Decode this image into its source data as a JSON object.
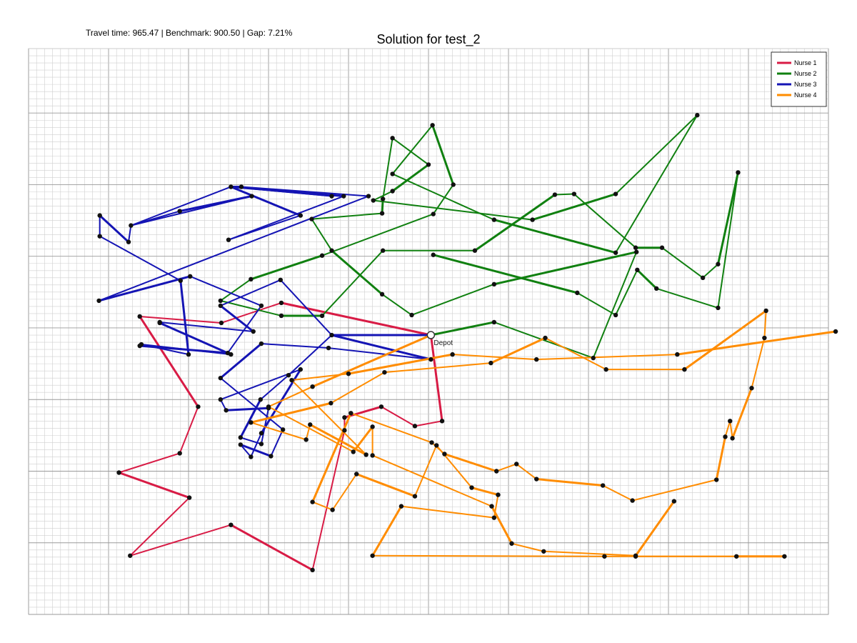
{
  "header": {
    "stats": "Travel time: 965.47 | Benchmark: 900.50 | Gap: 7.21%",
    "title": "Solution for test_2"
  },
  "chart_data": {
    "type": "line",
    "title": "Solution for test_2",
    "subtitle": "Travel time: 965.47 | Benchmark: 900.50 | Gap: 7.21%",
    "xlabel": "",
    "ylabel": "",
    "xlim": [
      0,
      1000
    ],
    "ylim": [
      0,
      790
    ],
    "grid": true,
    "legend_position": "top-right",
    "depot": {
      "label": "Depot",
      "x": 503,
      "y": 390
    },
    "series": [
      {
        "name": "Nurse 1",
        "color": "#d81b45",
        "path": [
          [
            503,
            390
          ],
          [
            316,
            435
          ],
          [
            241,
            407
          ],
          [
            139,
            416
          ],
          [
            212,
            290
          ],
          [
            189,
            225
          ],
          [
            113,
            198
          ],
          [
            201,
            163
          ],
          [
            127,
            82
          ],
          [
            253,
            125
          ],
          [
            355,
            62
          ],
          [
            395,
            257
          ],
          [
            395,
            275
          ],
          [
            441,
            290
          ],
          [
            483,
            263
          ],
          [
            517,
            270
          ],
          [
            503,
            390
          ]
        ]
      },
      {
        "name": "Nurse 2",
        "color": "#108010",
        "path": [
          [
            503,
            390
          ],
          [
            582,
            408
          ],
          [
            706,
            358
          ],
          [
            760,
            506
          ],
          [
            582,
            461
          ],
          [
            479,
            418
          ],
          [
            442,
            447
          ],
          [
            379,
            508
          ],
          [
            354,
            552
          ],
          [
            442,
            560
          ],
          [
            443,
            580
          ],
          [
            455,
            665
          ],
          [
            500,
            628
          ],
          [
            455,
            591
          ],
          [
            431,
            578
          ],
          [
            630,
            551
          ],
          [
            734,
            587
          ],
          [
            836,
            697
          ],
          [
            734,
            505
          ],
          [
            582,
            551
          ],
          [
            455,
            615
          ],
          [
            505,
            683
          ],
          [
            531,
            600
          ],
          [
            506,
            559
          ],
          [
            367,
            501
          ],
          [
            278,
            468
          ],
          [
            240,
            438
          ],
          [
            316,
            417
          ],
          [
            367,
            417
          ],
          [
            443,
            508
          ],
          [
            558,
            508
          ],
          [
            658,
            586
          ],
          [
            682,
            587
          ],
          [
            759,
            512
          ],
          [
            792,
            512
          ],
          [
            843,
            470
          ],
          [
            862,
            489
          ],
          [
            887,
            617
          ],
          [
            862,
            428
          ],
          [
            785,
            455
          ],
          [
            761,
            481
          ],
          [
            734,
            418
          ],
          [
            686,
            449
          ],
          [
            506,
            502
          ]
        ]
      },
      {
        "name": "Nurse 3",
        "color": "#1414b4",
        "path": [
          [
            503,
            390
          ],
          [
            379,
            390
          ],
          [
            325,
            334
          ],
          [
            290,
            300
          ],
          [
            265,
            247
          ],
          [
            291,
            238
          ],
          [
            300,
            288
          ],
          [
            247,
            285
          ],
          [
            240,
            300
          ],
          [
            340,
            342
          ],
          [
            291,
            253
          ],
          [
            278,
            220
          ],
          [
            265,
            237
          ],
          [
            303,
            221
          ],
          [
            318,
            258
          ],
          [
            240,
            330
          ],
          [
            291,
            378
          ],
          [
            375,
            372
          ],
          [
            503,
            356
          ],
          [
            379,
            390
          ],
          [
            315,
            467
          ],
          [
            240,
            431
          ],
          [
            281,
            395
          ],
          [
            164,
            408
          ],
          [
            164,
            407
          ],
          [
            253,
            363
          ],
          [
            141,
            377
          ],
          [
            200,
            363
          ],
          [
            190,
            466
          ],
          [
            89,
            528
          ],
          [
            89,
            557
          ],
          [
            125,
            520
          ],
          [
            128,
            543
          ],
          [
            189,
            563
          ],
          [
            279,
            584
          ],
          [
            128,
            543
          ],
          [
            253,
            597
          ],
          [
            394,
            584
          ],
          [
            250,
            523
          ],
          [
            340,
            557
          ],
          [
            253,
            597
          ],
          [
            379,
            584
          ],
          [
            253,
            597
          ],
          [
            266,
            597
          ],
          [
            425,
            584
          ],
          [
            88,
            438
          ],
          [
            202,
            472
          ],
          [
            291,
            431
          ],
          [
            249,
            365
          ],
          [
            139,
            375
          ]
        ]
      },
      {
        "name": "Nurse 4",
        "color": "#ff8c00",
        "path": [
          [
            503,
            390
          ],
          [
            355,
            318
          ],
          [
            300,
            290
          ],
          [
            406,
            227
          ],
          [
            430,
            262
          ],
          [
            430,
            222
          ],
          [
            579,
            151
          ],
          [
            604,
            99
          ],
          [
            644,
            88
          ],
          [
            759,
            82
          ],
          [
            807,
            158
          ],
          [
            759,
            81
          ],
          [
            885,
            81
          ],
          [
            945,
            81
          ],
          [
            720,
            81
          ],
          [
            430,
            82
          ],
          [
            466,
            151
          ],
          [
            582,
            135
          ],
          [
            587,
            167
          ],
          [
            554,
            177
          ],
          [
            510,
            236
          ],
          [
            483,
            165
          ],
          [
            410,
            196
          ],
          [
            380,
            146
          ],
          [
            355,
            157
          ],
          [
            403,
            281
          ],
          [
            504,
            240
          ],
          [
            520,
            224
          ],
          [
            585,
            200
          ],
          [
            610,
            210
          ],
          [
            635,
            189
          ],
          [
            718,
            180
          ],
          [
            755,
            159
          ],
          [
            860,
            188
          ],
          [
            871,
            248
          ],
          [
            877,
            270
          ],
          [
            880,
            246
          ],
          [
            904,
            316
          ],
          [
            920,
            386
          ],
          [
            922,
            424
          ],
          [
            820,
            342
          ],
          [
            722,
            342
          ],
          [
            646,
            386
          ],
          [
            578,
            351
          ],
          [
            445,
            338
          ],
          [
            378,
            295
          ],
          [
            278,
            268
          ],
          [
            347,
            244
          ],
          [
            352,
            265
          ],
          [
            422,
            223
          ],
          [
            329,
            327
          ],
          [
            400,
            336
          ],
          [
            530,
            363
          ],
          [
            635,
            356
          ],
          [
            811,
            363
          ],
          [
            1009,
            395
          ]
        ]
      }
    ]
  }
}
